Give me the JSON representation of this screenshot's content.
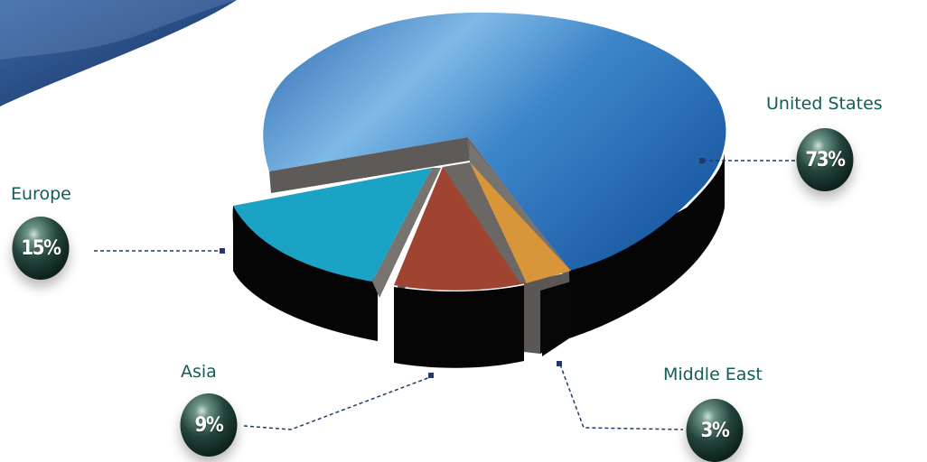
{
  "colors": {
    "label_text": "#0f5e57",
    "badge_text": "#ffffff",
    "leader_line": "#1f3a6b",
    "banner": "#1c3f78"
  },
  "chart_data": {
    "type": "pie",
    "title": "",
    "style": "3d-exploded",
    "unit": "%",
    "slices": [
      {
        "label": "United States",
        "value": 73,
        "display": "73%",
        "color": "#3f87c8"
      },
      {
        "label": "Europe",
        "value": 15,
        "display": "15%",
        "color": "#1aa3c4"
      },
      {
        "label": "Asia",
        "value": 9,
        "display": "9%",
        "color": "#a04432"
      },
      {
        "label": "Middle East",
        "value": 3,
        "display": "3%",
        "color": "#d8953a"
      }
    ]
  }
}
